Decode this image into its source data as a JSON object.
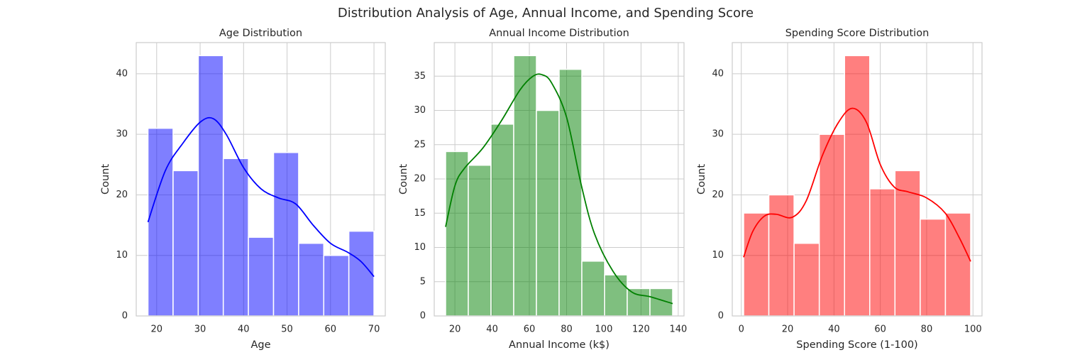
{
  "title": "Distribution Analysis of Age, Annual Income, and Spending Score",
  "chart_data": [
    {
      "type": "histogram",
      "title": "Age Distribution",
      "x_label": "Age",
      "y_label": "Count",
      "color": "blue",
      "grid": true,
      "bins": [
        18,
        23.78,
        29.56,
        35.33,
        41.11,
        46.89,
        52.67,
        58.44,
        64.22,
        70
      ],
      "counts": [
        31,
        24,
        43,
        26,
        13,
        27,
        12,
        10,
        14
      ],
      "kde": {
        "x": [
          18,
          22,
          26,
          30,
          33,
          36,
          40,
          44,
          48,
          52,
          56,
          60,
          64,
          67,
          70
        ],
        "y": [
          15.5,
          24,
          28.5,
          32,
          32.6,
          30,
          24.5,
          21,
          19.5,
          18.5,
          15,
          12,
          10.5,
          9,
          6.5
        ]
      },
      "xlim": [
        15.3,
        72.6
      ],
      "xticks": [
        20,
        30,
        40,
        50,
        60,
        70
      ],
      "ylim": [
        0,
        45.15
      ],
      "yticks": [
        0,
        10,
        20,
        30,
        40
      ]
    },
    {
      "type": "histogram",
      "title": "Annual Income Distribution",
      "x_label": "Annual Income (k$)",
      "y_label": "Count",
      "color": "green",
      "grid": true,
      "bins": [
        15,
        27.2,
        39.4,
        51.6,
        63.8,
        76,
        88.2,
        100.4,
        112.6,
        124.8,
        137
      ],
      "counts": [
        24,
        22,
        28,
        38,
        30,
        36,
        8,
        6,
        4,
        4
      ],
      "kde": {
        "x": [
          15,
          20,
          25,
          35,
          45,
          55,
          62,
          67,
          72,
          80,
          88,
          95,
          105,
          115,
          125,
          137
        ],
        "y": [
          13,
          19,
          21.5,
          24.5,
          28.5,
          33,
          35,
          35.2,
          34,
          29,
          19,
          12,
          6.5,
          3.5,
          2.8,
          1.8
        ]
      },
      "xlim": [
        8.9,
        143.1
      ],
      "xticks": [
        20,
        40,
        60,
        80,
        100,
        120,
        140
      ],
      "ylim": [
        0,
        39.9
      ],
      "yticks": [
        0,
        5,
        10,
        15,
        20,
        25,
        30,
        35
      ]
    },
    {
      "type": "histogram",
      "title": "Spending Score Distribution",
      "x_label": "Spending Score (1-100)",
      "y_label": "Count",
      "color": "red",
      "grid": true,
      "bins": [
        1,
        11.89,
        22.78,
        33.67,
        44.56,
        55.44,
        66.33,
        77.22,
        88.11,
        99
      ],
      "counts": [
        17,
        20,
        12,
        30,
        43,
        21,
        24,
        16,
        17
      ],
      "kde": {
        "x": [
          1,
          5,
          10,
          15,
          22,
          28,
          35,
          42,
          48,
          54,
          60,
          66,
          72,
          80,
          88,
          94,
          99
        ],
        "y": [
          9.7,
          14,
          16.5,
          16.8,
          16.3,
          19,
          26.5,
          32,
          34.3,
          32,
          25,
          21.3,
          20.5,
          19.5,
          17,
          13,
          9
        ]
      },
      "xlim": [
        -3.9,
        103.9
      ],
      "xticks": [
        0,
        20,
        40,
        60,
        80,
        100
      ],
      "ylim": [
        0,
        45.15
      ],
      "yticks": [
        0,
        10,
        20,
        30,
        40
      ]
    }
  ]
}
